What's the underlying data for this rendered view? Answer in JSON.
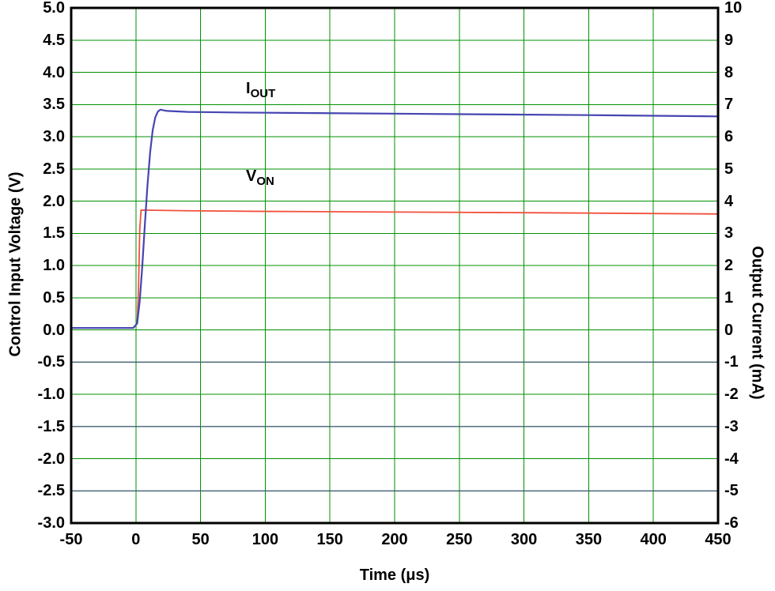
{
  "chart_data": {
    "type": "line",
    "title": "",
    "xlabel": "Time (μs)",
    "ylabel_left": "Control Input Voltage (V)",
    "ylabel_right": "Output Current (mA)",
    "x_range": [
      -50,
      450
    ],
    "y_left_range": [
      -3.0,
      5.0
    ],
    "y_right_range": [
      -6,
      10
    ],
    "x_tick_labels": [
      "-50",
      "0",
      "50",
      "100",
      "150",
      "200",
      "250",
      "300",
      "350",
      "400",
      "450"
    ],
    "y_left_tick_labels": [
      "5.0",
      "4.5",
      "4.0",
      "3.5",
      "3.0",
      "2.5",
      "2.0",
      "1.5",
      "1.0",
      "0.5",
      "0.0",
      "-0.5",
      "-1.0",
      "-1.5",
      "-2.0",
      "-2.5",
      "-3.0"
    ],
    "y_right_tick_labels": [
      "10",
      "9",
      "8",
      "7",
      "6",
      "5",
      "4",
      "3",
      "2",
      "1",
      "0",
      "-1",
      "-2",
      "-3",
      "-4",
      "-5",
      "-6"
    ],
    "grid": true,
    "grid_color": "#009000",
    "border_color": "#000000",
    "background": "#ffffff",
    "legend_position": "inline-annotations",
    "series": [
      {
        "name": "VON",
        "axis": "left",
        "unit": "V",
        "color": "#f2503c",
        "width": 1.8,
        "points": [
          [
            -50,
            0.03
          ],
          [
            -2,
            0.03
          ],
          [
            1,
            0.1
          ],
          [
            2,
            0.6
          ],
          [
            3,
            1.55
          ],
          [
            4,
            1.86
          ],
          [
            40,
            1.85
          ],
          [
            100,
            1.84
          ],
          [
            200,
            1.83
          ],
          [
            300,
            1.82
          ],
          [
            450,
            1.8
          ]
        ]
      },
      {
        "name": "IOUT",
        "axis": "right",
        "unit": "mA",
        "color": "#4545b2",
        "width": 2.2,
        "points": [
          [
            -50,
            0.06
          ],
          [
            -2,
            0.06
          ],
          [
            1,
            0.2
          ],
          [
            3,
            0.9
          ],
          [
            5,
            2.0
          ],
          [
            7,
            3.3
          ],
          [
            9,
            4.5
          ],
          [
            11,
            5.5
          ],
          [
            13,
            6.2
          ],
          [
            15,
            6.6
          ],
          [
            17,
            6.78
          ],
          [
            19,
            6.84
          ],
          [
            24,
            6.8
          ],
          [
            40,
            6.77
          ],
          [
            80,
            6.75
          ],
          [
            150,
            6.73
          ],
          [
            250,
            6.7
          ],
          [
            350,
            6.67
          ],
          [
            450,
            6.63
          ]
        ]
      }
    ],
    "annotations": [
      {
        "name": "iout-trace-label",
        "text_main": "I",
        "text_sub": "OUT",
        "x": 85,
        "y": 3.88,
        "axis": "left"
      },
      {
        "name": "von-trace-label",
        "text_main": "V",
        "text_sub": "ON",
        "x": 85,
        "y": 2.52,
        "axis": "left"
      }
    ],
    "reference_lines": {
      "axis": "left",
      "values": [
        -0.5,
        -1.5,
        -2.5
      ],
      "color": "#50508c",
      "opacity": 0.7
    }
  }
}
